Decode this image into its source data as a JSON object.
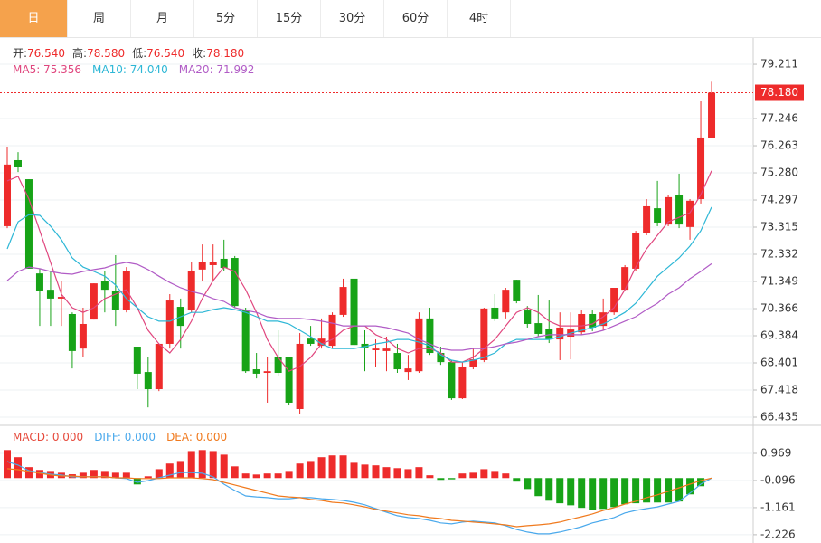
{
  "tabs": [
    "日",
    "周",
    "月",
    "5分",
    "15分",
    "30分",
    "60分",
    "4时"
  ],
  "active_tab": 0,
  "chart_data": [
    {
      "type": "candlestick",
      "info": [
        {
          "label": "开:",
          "value": "76.540"
        },
        {
          "label": "高:",
          "value": "78.580"
        },
        {
          "label": "低:",
          "value": "76.540"
        },
        {
          "label": "收:",
          "value": "78.180"
        }
      ],
      "up_color": "#ee2b2b",
      "down_color": "#17a317",
      "open": [
        73.35,
        75.74,
        75.05,
        71.64,
        71.05,
        70.73,
        70.17,
        68.92,
        69.97,
        71.35,
        71.02,
        70.33,
        68.99,
        68.07,
        67.45,
        69.09,
        70.43,
        70.3,
        71.78,
        71.94,
        72.17,
        72.2,
        70.3,
        68.17,
        68.04,
        68.63,
        68.6,
        66.73,
        69.28,
        69.02,
        69.02,
        70.14,
        71.45,
        69.09,
        68.86,
        68.83,
        68.76,
        68.07,
        68.1,
        70.01,
        68.76,
        68.43,
        67.12,
        68.27,
        68.5,
        70.4,
        70.23,
        71.41,
        70.3,
        69.84,
        69.64,
        69.25,
        69.35,
        69.51,
        70.17,
        69.74,
        70.23,
        71.05,
        71.81,
        73.09,
        74.0,
        73.41,
        74.49,
        73.32,
        74.33,
        76.54
      ],
      "high": [
        76.23,
        76.03,
        75.05,
        71.81,
        71.71,
        71.38,
        70.23,
        70.4,
        71.28,
        71.71,
        72.3,
        71.87,
        68.99,
        68.6,
        69.09,
        70.89,
        70.73,
        72.04,
        72.69,
        72.69,
        72.86,
        72.27,
        70.4,
        68.76,
        68.6,
        69.58,
        68.6,
        69.48,
        69.74,
        70.01,
        70.23,
        71.45,
        71.45,
        69.58,
        69.25,
        69.35,
        69.09,
        68.69,
        70.23,
        70.4,
        68.99,
        68.5,
        68.43,
        68.92,
        70.4,
        70.89,
        71.12,
        71.41,
        70.46,
        70.86,
        70.66,
        70.23,
        70.23,
        70.3,
        70.3,
        70.73,
        71.12,
        71.94,
        73.18,
        74.33,
        74.99,
        74.49,
        75.25,
        74.33,
        77.87,
        78.58
      ],
      "low": [
        73.28,
        75.31,
        71.81,
        69.74,
        69.74,
        69.74,
        68.2,
        68.6,
        69.97,
        70.23,
        69.74,
        70.23,
        67.45,
        66.79,
        67.38,
        68.92,
        68.92,
        70.23,
        71.38,
        71.38,
        71.71,
        70.4,
        68.04,
        67.84,
        66.96,
        67.94,
        66.86,
        66.56,
        69.02,
        68.92,
        68.92,
        70.07,
        68.99,
        68.1,
        68.27,
        68.1,
        68.04,
        67.78,
        68.04,
        68.69,
        68.33,
        67.06,
        67.09,
        68.17,
        68.43,
        69.91,
        70.01,
        70.56,
        69.68,
        69.35,
        69.12,
        68.5,
        68.53,
        69.42,
        69.55,
        69.58,
        70.14,
        70.99,
        71.71,
        73.02,
        73.35,
        73.35,
        73.28,
        72.86,
        74.17,
        76.54
      ],
      "close": [
        75.58,
        75.48,
        71.81,
        70.99,
        70.73,
        70.79,
        68.83,
        69.81,
        71.28,
        71.05,
        70.33,
        71.71,
        68.01,
        67.45,
        69.09,
        70.66,
        69.74,
        71.71,
        72.04,
        72.04,
        71.84,
        70.46,
        68.1,
        68.01,
        68.1,
        68.04,
        66.96,
        69.09,
        69.09,
        69.28,
        70.14,
        71.15,
        69.05,
        68.96,
        68.92,
        68.92,
        68.17,
        68.2,
        70.01,
        68.76,
        68.43,
        67.12,
        68.27,
        68.53,
        70.37,
        70.01,
        71.05,
        70.63,
        69.81,
        69.45,
        69.25,
        69.68,
        69.61,
        70.17,
        69.68,
        70.23,
        71.12,
        71.87,
        73.09,
        74.07,
        73.48,
        74.4,
        73.41,
        74.27,
        76.56,
        78.18
      ],
      "series": [
        {
          "name": "MA5: 75.356",
          "color": "#e0467e",
          "values": [
            74.99,
            75.15,
            74.33,
            73.18,
            72.04,
            70.89,
            70.4,
            70.23,
            70.4,
            70.73,
            70.89,
            71.05,
            70.4,
            69.58,
            69.09,
            68.76,
            69.25,
            69.91,
            70.73,
            71.38,
            71.87,
            71.71,
            71.05,
            70.23,
            69.25,
            68.6,
            68.1,
            68.27,
            68.6,
            69.09,
            69.25,
            69.58,
            69.74,
            69.74,
            69.42,
            69.25,
            68.92,
            68.76,
            68.92,
            68.92,
            68.76,
            68.43,
            68.43,
            68.6,
            68.92,
            69.25,
            69.74,
            70.23,
            70.4,
            70.23,
            69.91,
            69.74,
            69.74,
            69.74,
            69.81,
            70.07,
            70.4,
            71.05,
            71.87,
            72.53,
            73.02,
            73.51,
            73.67,
            73.84,
            74.49,
            75.356
          ]
        },
        {
          "name": "MA10: 74.040",
          "color": "#2db7d6",
          "values": [
            72.53,
            73.51,
            73.77,
            73.74,
            73.35,
            72.86,
            72.2,
            71.87,
            71.71,
            71.54,
            71.22,
            70.73,
            70.4,
            70.07,
            69.91,
            69.91,
            70.07,
            70.23,
            70.23,
            70.33,
            70.4,
            70.33,
            70.23,
            70.07,
            69.91,
            69.91,
            69.81,
            69.58,
            69.35,
            69.09,
            68.92,
            68.92,
            68.92,
            68.99,
            69.09,
            69.15,
            69.25,
            69.25,
            69.15,
            69.02,
            68.69,
            68.5,
            68.43,
            68.5,
            68.6,
            68.76,
            69.09,
            69.25,
            69.25,
            69.25,
            69.25,
            69.35,
            69.48,
            69.58,
            69.68,
            69.81,
            70.01,
            70.23,
            70.56,
            71.05,
            71.54,
            71.87,
            72.2,
            72.63,
            73.18,
            74.04
          ]
        },
        {
          "name": "MA20: 71.992",
          "color": "#b15cc6",
          "values": [
            71.38,
            71.71,
            71.87,
            71.81,
            71.71,
            71.64,
            71.61,
            71.71,
            71.78,
            71.84,
            71.97,
            72.04,
            71.97,
            71.78,
            71.54,
            71.31,
            71.12,
            70.99,
            70.89,
            70.73,
            70.63,
            70.4,
            70.3,
            70.23,
            70.07,
            70.01,
            70.01,
            70.01,
            69.97,
            69.91,
            69.84,
            69.74,
            69.74,
            69.74,
            69.74,
            69.68,
            69.58,
            69.48,
            69.25,
            69.09,
            68.92,
            68.86,
            68.86,
            68.92,
            68.92,
            68.99,
            69.09,
            69.15,
            69.25,
            69.35,
            69.42,
            69.42,
            69.42,
            69.42,
            69.48,
            69.58,
            69.74,
            69.91,
            70.07,
            70.33,
            70.56,
            70.89,
            71.12,
            71.45,
            71.71,
            71.992
          ]
        }
      ],
      "ylim": [
        66.14,
        80.13
      ],
      "yticks": [
        79.211,
        77.246,
        76.263,
        {
          "value": 75.28,
          "label": "75.280"
        },
        74.297,
        73.315,
        72.332,
        71.349,
        70.366,
        69.384,
        68.401,
        67.418,
        66.435
      ],
      "grid": true,
      "last_price": {
        "value": 78.18,
        "label": "78.180",
        "color": "#ee2b2b"
      }
    },
    {
      "type": "macd",
      "up_color": "#ee2b2b",
      "down_color": "#17a317",
      "series": [
        {
          "name": "MACD: 0.000",
          "color": "#e64a3c",
          "style": "bar",
          "values": [
            1.1,
            0.82,
            0.43,
            0.32,
            0.28,
            0.21,
            0.15,
            0.21,
            0.32,
            0.28,
            0.21,
            0.21,
            -0.25,
            0.07,
            0.35,
            0.57,
            0.67,
            1.06,
            1.1,
            1.06,
            0.92,
            0.46,
            0.18,
            0.14,
            0.18,
            0.18,
            0.28,
            0.57,
            0.67,
            0.82,
            0.89,
            0.89,
            0.6,
            0.53,
            0.5,
            0.43,
            0.39,
            0.35,
            0.43,
            0.11,
            -0.07,
            -0.05,
            0.18,
            0.21,
            0.35,
            0.28,
            0.18,
            -0.14,
            -0.43,
            -0.71,
            -0.89,
            -0.99,
            -1.07,
            -1.17,
            -1.24,
            -1.21,
            -1.14,
            -1.03,
            -0.99,
            -0.96,
            -0.96,
            -0.96,
            -0.92,
            -0.64,
            -0.32,
            0
          ]
        },
        {
          "name": "DIFF: 0.000",
          "color": "#4aa9ec",
          "style": "line",
          "values": [
            0.65,
            0.51,
            0.29,
            0.22,
            0.15,
            0.12,
            0.05,
            0.05,
            0.05,
            0.05,
            0.01,
            -0.02,
            -0.17,
            -0.1,
            0.01,
            0.12,
            0.22,
            0.22,
            0.19,
            0.05,
            -0.24,
            -0.49,
            -0.7,
            -0.74,
            -0.77,
            -0.81,
            -0.81,
            -0.77,
            -0.77,
            -0.81,
            -0.84,
            -0.88,
            -0.95,
            -1.05,
            -1.2,
            -1.34,
            -1.48,
            -1.55,
            -1.59,
            -1.66,
            -1.76,
            -1.8,
            -1.73,
            -1.69,
            -1.73,
            -1.76,
            -1.87,
            -2.02,
            -2.12,
            -2.19,
            -2.19,
            -2.12,
            -2.02,
            -1.91,
            -1.76,
            -1.66,
            -1.55,
            -1.37,
            -1.27,
            -1.2,
            -1.13,
            -1.02,
            -0.91,
            -0.59,
            -0.24,
            0
          ]
        },
        {
          "name": "DEA: 0.000",
          "color": "#f07a1e",
          "style": "line",
          "values": [
            0.37,
            0.33,
            0.26,
            0.19,
            0.12,
            0.08,
            0.08,
            0.05,
            0.05,
            0.05,
            0.01,
            0.01,
            -0.02,
            -0.02,
            -0.02,
            0.01,
            0.01,
            0.01,
            -0.02,
            -0.06,
            -0.17,
            -0.27,
            -0.38,
            -0.49,
            -0.59,
            -0.7,
            -0.74,
            -0.77,
            -0.84,
            -0.88,
            -0.95,
            -0.98,
            -1.05,
            -1.13,
            -1.23,
            -1.3,
            -1.37,
            -1.44,
            -1.48,
            -1.55,
            -1.59,
            -1.66,
            -1.69,
            -1.73,
            -1.76,
            -1.8,
            -1.84,
            -1.91,
            -1.87,
            -1.84,
            -1.8,
            -1.73,
            -1.62,
            -1.52,
            -1.41,
            -1.27,
            -1.16,
            -1.02,
            -0.91,
            -0.77,
            -0.66,
            -0.52,
            -0.38,
            -0.24,
            -0.1,
            0
          ]
        }
      ],
      "ylim": [
        -2.55,
        2.0
      ],
      "yticks": [
        0.969,
        -0.096,
        -1.161,
        -2.226
      ],
      "grid": true
    }
  ]
}
